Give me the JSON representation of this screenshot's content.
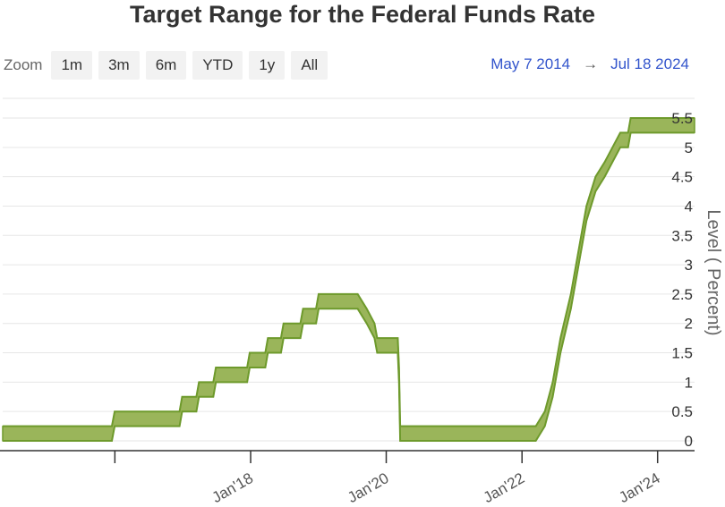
{
  "title": "Target Range for the Federal Funds Rate",
  "zoom": {
    "label": "Zoom",
    "buttons": [
      "1m",
      "3m",
      "6m",
      "YTD",
      "1y",
      "All"
    ]
  },
  "range": {
    "from": "May 7 2014",
    "arrow": "→",
    "to": "Jul 18 2024"
  },
  "colors": {
    "band_fill": "#9ab55a",
    "band_stroke": "#6e9a2c",
    "grid": "#e6e6e6",
    "axis": "#333333",
    "range_text": "#3355cc"
  },
  "chart_data": {
    "type": "area",
    "subtype": "range band (lower and upper bound)",
    "ylabel": "Level ( Percent)",
    "xlabel": "",
    "ylim": [
      0,
      5.5
    ],
    "yticks": [
      0,
      0.5,
      1,
      1.5,
      2,
      2.5,
      3,
      3.5,
      4,
      4.5,
      5,
      5.5
    ],
    "yaxis_side": "right",
    "xlim": [
      "2014-05-07",
      "2024-07-18"
    ],
    "xticks": [
      {
        "date": "2016-01-01",
        "label": ""
      },
      {
        "date": "2018-01-01",
        "label": "Jan'18"
      },
      {
        "date": "2020-01-01",
        "label": "Jan'20"
      },
      {
        "date": "2022-01-01",
        "label": "Jan'22"
      },
      {
        "date": "2024-01-01",
        "label": "Jan'24"
      }
    ],
    "grid": true,
    "legend": "none",
    "series": [
      {
        "name": "",
        "points": [
          {
            "date": "2014-05-07",
            "low": 0.0,
            "high": 0.25
          },
          {
            "date": "2015-12-16",
            "low": 0.0,
            "high": 0.25
          },
          {
            "date": "2015-12-31",
            "low": 0.25,
            "high": 0.5
          },
          {
            "date": "2016-12-14",
            "low": 0.25,
            "high": 0.5
          },
          {
            "date": "2016-12-28",
            "low": 0.5,
            "high": 0.75
          },
          {
            "date": "2017-03-15",
            "low": 0.5,
            "high": 0.75
          },
          {
            "date": "2017-03-29",
            "low": 0.75,
            "high": 1.0
          },
          {
            "date": "2017-06-14",
            "low": 0.75,
            "high": 1.0
          },
          {
            "date": "2017-06-28",
            "low": 1.0,
            "high": 1.25
          },
          {
            "date": "2017-12-13",
            "low": 1.0,
            "high": 1.25
          },
          {
            "date": "2017-12-27",
            "low": 1.25,
            "high": 1.5
          },
          {
            "date": "2018-03-21",
            "low": 1.25,
            "high": 1.5
          },
          {
            "date": "2018-04-04",
            "low": 1.5,
            "high": 1.75
          },
          {
            "date": "2018-06-13",
            "low": 1.5,
            "high": 1.75
          },
          {
            "date": "2018-06-27",
            "low": 1.75,
            "high": 2.0
          },
          {
            "date": "2018-09-26",
            "low": 1.75,
            "high": 2.0
          },
          {
            "date": "2018-10-10",
            "low": 2.0,
            "high": 2.25
          },
          {
            "date": "2018-12-19",
            "low": 2.0,
            "high": 2.25
          },
          {
            "date": "2019-01-02",
            "low": 2.25,
            "high": 2.5
          },
          {
            "date": "2019-07-31",
            "low": 2.25,
            "high": 2.5
          },
          {
            "date": "2019-09-18",
            "low": 2.0,
            "high": 2.25
          },
          {
            "date": "2019-10-30",
            "low": 1.75,
            "high": 2.0
          },
          {
            "date": "2019-11-13",
            "low": 1.5,
            "high": 1.75
          },
          {
            "date": "2020-03-03",
            "low": 1.5,
            "high": 1.75
          },
          {
            "date": "2020-03-10",
            "low": 1.0,
            "high": 1.25
          },
          {
            "date": "2020-03-16",
            "low": 0.0,
            "high": 0.25
          },
          {
            "date": "2022-03-16",
            "low": 0.0,
            "high": 0.25
          },
          {
            "date": "2022-05-04",
            "low": 0.25,
            "high": 0.5
          },
          {
            "date": "2022-06-15",
            "low": 0.75,
            "high": 1.0
          },
          {
            "date": "2022-07-27",
            "low": 1.5,
            "high": 1.75
          },
          {
            "date": "2022-09-21",
            "low": 2.25,
            "high": 2.5
          },
          {
            "date": "2022-11-02",
            "low": 3.0,
            "high": 3.25
          },
          {
            "date": "2022-12-14",
            "low": 3.75,
            "high": 4.0
          },
          {
            "date": "2023-02-01",
            "low": 4.25,
            "high": 4.5
          },
          {
            "date": "2023-03-22",
            "low": 4.5,
            "high": 4.75
          },
          {
            "date": "2023-05-03",
            "low": 4.75,
            "high": 5.0
          },
          {
            "date": "2023-06-14",
            "low": 5.0,
            "high": 5.25
          },
          {
            "date": "2023-07-26",
            "low": 5.0,
            "high": 5.25
          },
          {
            "date": "2023-08-09",
            "low": 5.25,
            "high": 5.5
          },
          {
            "date": "2024-07-18",
            "low": 5.25,
            "high": 5.5
          }
        ]
      }
    ]
  }
}
